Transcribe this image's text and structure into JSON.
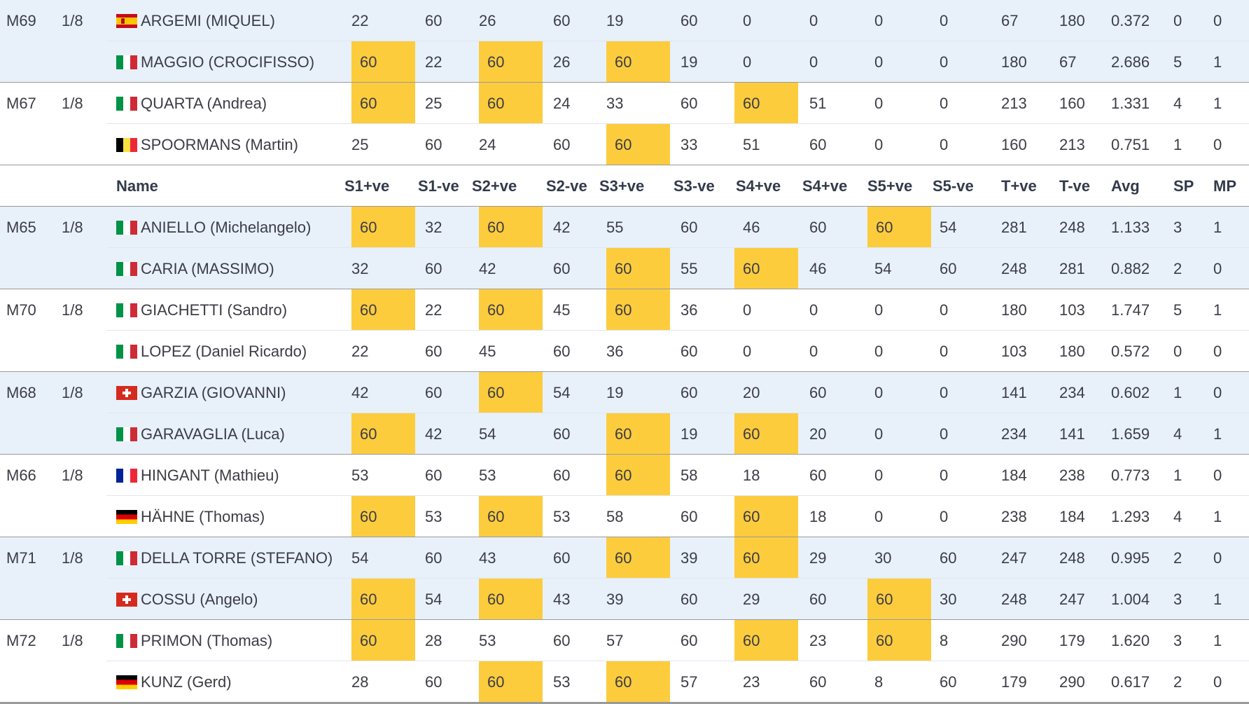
{
  "colors": {
    "highlight": "#fccc3d",
    "alt_row": "#e8f1fa",
    "separator": "#9a9a9a"
  },
  "header": {
    "name": "Name",
    "columns": [
      "S1+ve",
      "S1-ve",
      "S2+ve",
      "S2-ve",
      "S3+ve",
      "S3-ve",
      "S4+ve",
      "S4+ve",
      "S5+ve",
      "S5-ve",
      "T+ve",
      "T-ve",
      "Avg",
      "SP",
      "MP"
    ]
  },
  "matches_before_header": [
    {
      "match": "M69",
      "round": "1/8",
      "players": [
        {
          "flag": "es",
          "name": "ARGEMI (MIQUEL)",
          "scores": [
            "22",
            "60",
            "26",
            "60",
            "19",
            "60",
            "0",
            "0",
            "0",
            "0"
          ],
          "highlights": [],
          "totals": [
            "67",
            "180",
            "0.372",
            "0",
            "0"
          ]
        },
        {
          "flag": "it",
          "name": "MAGGIO (CROCIFISSO)",
          "scores": [
            "60",
            "22",
            "60",
            "26",
            "60",
            "19",
            "0",
            "0",
            "0",
            "0"
          ],
          "highlights": [
            0,
            2,
            4
          ],
          "totals": [
            "180",
            "67",
            "2.686",
            "5",
            "1"
          ]
        }
      ]
    },
    {
      "match": "M67",
      "round": "1/8",
      "players": [
        {
          "flag": "it",
          "name": "QUARTA (Andrea)",
          "scores": [
            "60",
            "25",
            "60",
            "24",
            "33",
            "60",
            "60",
            "51",
            "0",
            "0"
          ],
          "highlights": [
            0,
            2,
            6
          ],
          "totals": [
            "213",
            "160",
            "1.331",
            "4",
            "1"
          ]
        },
        {
          "flag": "be",
          "name": "SPOORMANS (Martin)",
          "scores": [
            "25",
            "60",
            "24",
            "60",
            "60",
            "33",
            "51",
            "60",
            "0",
            "0"
          ],
          "highlights": [
            4
          ],
          "totals": [
            "160",
            "213",
            "0.751",
            "1",
            "0"
          ]
        }
      ]
    }
  ],
  "matches_after_header": [
    {
      "match": "M65",
      "round": "1/8",
      "players": [
        {
          "flag": "it",
          "name": "ANIELLO (Michelangelo)",
          "scores": [
            "60",
            "32",
            "60",
            "42",
            "55",
            "60",
            "46",
            "60",
            "60",
            "54"
          ],
          "highlights": [
            0,
            2,
            8
          ],
          "totals": [
            "281",
            "248",
            "1.133",
            "3",
            "1"
          ]
        },
        {
          "flag": "it",
          "name": "CARIA (MASSIMO)",
          "scores": [
            "32",
            "60",
            "42",
            "60",
            "60",
            "55",
            "60",
            "46",
            "54",
            "60"
          ],
          "highlights": [
            4,
            6
          ],
          "totals": [
            "248",
            "281",
            "0.882",
            "2",
            "0"
          ]
        }
      ]
    },
    {
      "match": "M70",
      "round": "1/8",
      "players": [
        {
          "flag": "it",
          "name": "GIACHETTI (Sandro)",
          "scores": [
            "60",
            "22",
            "60",
            "45",
            "60",
            "36",
            "0",
            "0",
            "0",
            "0"
          ],
          "highlights": [
            0,
            2,
            4
          ],
          "totals": [
            "180",
            "103",
            "1.747",
            "5",
            "1"
          ]
        },
        {
          "flag": "it",
          "name": "LOPEZ (Daniel Ricardo)",
          "scores": [
            "22",
            "60",
            "45",
            "60",
            "36",
            "60",
            "0",
            "0",
            "0",
            "0"
          ],
          "highlights": [],
          "totals": [
            "103",
            "180",
            "0.572",
            "0",
            "0"
          ]
        }
      ]
    },
    {
      "match": "M68",
      "round": "1/8",
      "players": [
        {
          "flag": "ch",
          "name": "GARZIA (GIOVANNI)",
          "scores": [
            "42",
            "60",
            "60",
            "54",
            "19",
            "60",
            "20",
            "60",
            "0",
            "0"
          ],
          "highlights": [
            2
          ],
          "totals": [
            "141",
            "234",
            "0.602",
            "1",
            "0"
          ]
        },
        {
          "flag": "it",
          "name": "GARAVAGLIA (Luca)",
          "scores": [
            "60",
            "42",
            "54",
            "60",
            "60",
            "19",
            "60",
            "20",
            "0",
            "0"
          ],
          "highlights": [
            0,
            4,
            6
          ],
          "totals": [
            "234",
            "141",
            "1.659",
            "4",
            "1"
          ]
        }
      ]
    },
    {
      "match": "M66",
      "round": "1/8",
      "players": [
        {
          "flag": "fr",
          "name": "HINGANT (Mathieu)",
          "scores": [
            "53",
            "60",
            "53",
            "60",
            "60",
            "58",
            "18",
            "60",
            "0",
            "0"
          ],
          "highlights": [
            4
          ],
          "totals": [
            "184",
            "238",
            "0.773",
            "1",
            "0"
          ]
        },
        {
          "flag": "de",
          "name": "HÄHNE (Thomas)",
          "scores": [
            "60",
            "53",
            "60",
            "53",
            "58",
            "60",
            "60",
            "18",
            "0",
            "0"
          ],
          "highlights": [
            0,
            2,
            6
          ],
          "totals": [
            "238",
            "184",
            "1.293",
            "4",
            "1"
          ]
        }
      ]
    },
    {
      "match": "M71",
      "round": "1/8",
      "players": [
        {
          "flag": "it",
          "name": "DELLA TORRE (STEFANO)",
          "scores": [
            "54",
            "60",
            "43",
            "60",
            "60",
            "39",
            "60",
            "29",
            "30",
            "60"
          ],
          "highlights": [
            4,
            6
          ],
          "totals": [
            "247",
            "248",
            "0.995",
            "2",
            "0"
          ]
        },
        {
          "flag": "ch",
          "name": "COSSU (Angelo)",
          "scores": [
            "60",
            "54",
            "60",
            "43",
            "39",
            "60",
            "29",
            "60",
            "60",
            "30"
          ],
          "highlights": [
            0,
            2,
            8
          ],
          "totals": [
            "248",
            "247",
            "1.004",
            "3",
            "1"
          ]
        }
      ]
    },
    {
      "match": "M72",
      "round": "1/8",
      "players": [
        {
          "flag": "it",
          "name": "PRIMON (Thomas)",
          "scores": [
            "60",
            "28",
            "53",
            "60",
            "57",
            "60",
            "60",
            "23",
            "60",
            "8"
          ],
          "highlights": [
            0,
            6,
            8
          ],
          "totals": [
            "290",
            "179",
            "1.620",
            "3",
            "1"
          ]
        },
        {
          "flag": "de",
          "name": "KUNZ (Gerd)",
          "scores": [
            "28",
            "60",
            "60",
            "53",
            "60",
            "57",
            "23",
            "60",
            "8",
            "60"
          ],
          "highlights": [
            2,
            4
          ],
          "totals": [
            "179",
            "290",
            "0.617",
            "2",
            "0"
          ]
        }
      ]
    }
  ]
}
